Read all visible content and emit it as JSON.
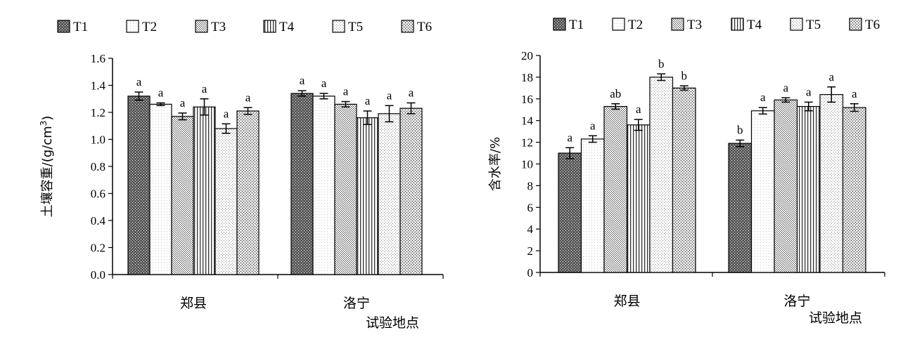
{
  "legend": [
    "T1",
    "T2",
    "T3",
    "T4",
    "T5",
    "T6"
  ],
  "chart_data": [
    {
      "type": "bar",
      "ylabel": "土壤容重/(g/cm3)",
      "ylabel_main": "土壤容重/(g/cm",
      "ylabel_sup": "3",
      "ylabel_end": ")",
      "xlabel": "试验地点",
      "ylim": [
        0,
        1.6
      ],
      "yticks": [
        "0.0",
        "0.2",
        "0.4",
        "0.6",
        "0.8",
        "1.0",
        "1.2",
        "1.4",
        "1.6"
      ],
      "categories": [
        "郑县",
        "洛宁"
      ],
      "series": [
        {
          "name": "T1",
          "values": [
            1.32,
            1.34
          ],
          "errors": [
            0.03,
            0.02
          ],
          "letters": [
            "a",
            "a"
          ]
        },
        {
          "name": "T2",
          "values": [
            1.26,
            1.32
          ],
          "errors": [
            0.01,
            0.02
          ],
          "letters": [
            "a",
            "a"
          ]
        },
        {
          "name": "T3",
          "values": [
            1.17,
            1.26
          ],
          "errors": [
            0.025,
            0.02
          ],
          "letters": [
            "a",
            "a"
          ]
        },
        {
          "name": "T4",
          "values": [
            1.24,
            1.16
          ],
          "errors": [
            0.06,
            0.05
          ],
          "letters": [
            "a",
            "a"
          ]
        },
        {
          "name": "T5",
          "values": [
            1.08,
            1.19
          ],
          "errors": [
            0.035,
            0.06
          ],
          "letters": [
            "a",
            "a"
          ]
        },
        {
          "name": "T6",
          "values": [
            1.21,
            1.23
          ],
          "errors": [
            0.025,
            0.04
          ],
          "letters": [
            "a",
            "a"
          ]
        }
      ]
    },
    {
      "type": "bar",
      "ylabel": "含水率/%",
      "xlabel": "试验地点",
      "ylim": [
        0,
        20
      ],
      "yticks": [
        "0",
        "2",
        "4",
        "6",
        "8",
        "10",
        "12",
        "14",
        "16",
        "18",
        "20"
      ],
      "categories": [
        "郑县",
        "洛宁"
      ],
      "series": [
        {
          "name": "T1",
          "values": [
            11.0,
            11.9
          ],
          "errors": [
            0.5,
            0.3
          ],
          "letters": [
            "a",
            "b"
          ]
        },
        {
          "name": "T2",
          "values": [
            12.3,
            14.9
          ],
          "errors": [
            0.3,
            0.3
          ],
          "letters": [
            "a",
            "a"
          ]
        },
        {
          "name": "T3",
          "values": [
            15.3,
            15.9
          ],
          "errors": [
            0.25,
            0.2
          ],
          "letters": [
            "ab",
            "a"
          ]
        },
        {
          "name": "T4",
          "values": [
            13.6,
            15.3
          ],
          "errors": [
            0.5,
            0.4
          ],
          "letters": [
            "a",
            "a"
          ]
        },
        {
          "name": "T5",
          "values": [
            18.0,
            16.4
          ],
          "errors": [
            0.3,
            0.7
          ],
          "letters": [
            "b",
            "a"
          ]
        },
        {
          "name": "T6",
          "values": [
            17.0,
            15.2
          ],
          "errors": [
            0.2,
            0.35
          ],
          "letters": [
            "b",
            "a"
          ]
        }
      ]
    }
  ]
}
